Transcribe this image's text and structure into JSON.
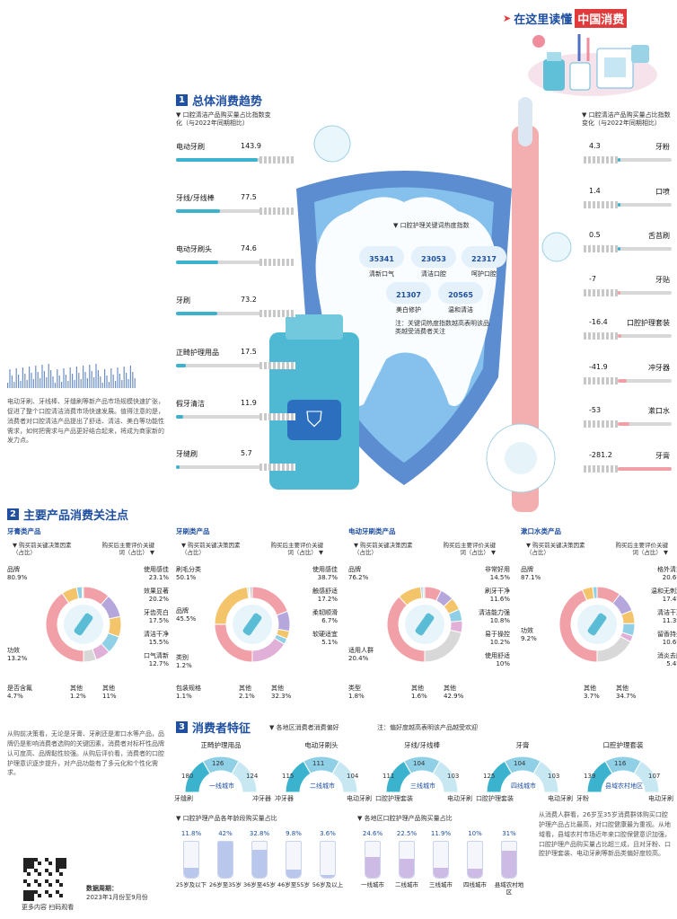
{
  "header": {
    "arrow": "➤",
    "title_a": "在这里读懂",
    "title_b": "中国消费"
  },
  "section1": {
    "num": "1",
    "title": "总体消费趋势",
    "left_note": "口腔清洁产品购买量占比指数变化（与2022年同期相比）",
    "right_note": "口腔清洁产品购买量占比指数变化（与2022年同期相比）"
  },
  "chart_data": [
    {
      "type": "bar",
      "name": "left_index",
      "categories": [
        "电动牙刷",
        "牙线/牙线棒",
        "电动牙刷头",
        "牙刷",
        "正畸护理用品",
        "假牙清洁",
        "牙缝刷"
      ],
      "values": [
        143.9,
        77.5,
        74.6,
        73.2,
        17.5,
        11.9,
        5.7
      ]
    },
    {
      "type": "bar",
      "name": "right_index",
      "categories": [
        "牙粉",
        "口喷",
        "舌苔刷",
        "牙贴",
        "口腔护理套装",
        "冲牙器",
        "漱口水",
        "牙膏"
      ],
      "values": [
        4.3,
        1.4,
        0.5,
        -7.0,
        -16.4,
        -41.9,
        -53.0,
        -281.2
      ]
    },
    {
      "type": "table",
      "name": "keyword_heat",
      "title": "口腔护理关键词热度指数",
      "categories": [
        "清新口气",
        "清洁口腔",
        "呵护口腔",
        "美白修护",
        "温和清洁"
      ],
      "values": [
        35341,
        23053,
        22317,
        21307,
        20565
      ],
      "note": "注：关键词热度指数越高表明该品类越受消费者关注"
    },
    {
      "type": "pie",
      "name": "toothpaste",
      "title": "牙膏类产品",
      "left_slices": [
        {
          "label": "品牌",
          "value": 80.9
        },
        {
          "label": "功效",
          "value": 13.2
        },
        {
          "label": "是否含氟",
          "value": 4.7
        },
        {
          "label": "其他",
          "value": 1.2
        }
      ],
      "right_slices": [
        {
          "label": "使用感佳",
          "value": 23.1
        },
        {
          "label": "效果显著",
          "value": 20.2
        },
        {
          "label": "牙齿亮白",
          "value": 17.5
        },
        {
          "label": "清洁干净",
          "value": 15.5
        },
        {
          "label": "口气清新",
          "value": 12.7
        },
        {
          "label": "其他",
          "value": 11.0
        }
      ]
    },
    {
      "type": "pie",
      "name": "toothbrush",
      "title": "牙刷类产品",
      "left_slices": [
        {
          "label": "刷毛分类",
          "value": 50.1
        },
        {
          "label": "品牌",
          "value": 45.5
        },
        {
          "label": "类别",
          "value": 1.2
        },
        {
          "label": "包装规格",
          "value": 1.1
        },
        {
          "label": "其他",
          "value": 2.1
        }
      ],
      "right_slices": [
        {
          "label": "使用感佳",
          "value": 38.7
        },
        {
          "label": "触感舒适",
          "value": 17.2
        },
        {
          "label": "柔韧顺滑",
          "value": 6.7
        },
        {
          "label": "软硬适宜",
          "value": 5.1
        },
        {
          "label": "其他",
          "value": 32.3
        }
      ]
    },
    {
      "type": "pie",
      "name": "electric_toothbrush",
      "title": "电动牙刷类产品",
      "left_slices": [
        {
          "label": "品牌",
          "value": 76.2
        },
        {
          "label": "适用人群",
          "value": 20.4
        },
        {
          "label": "类型",
          "value": 1.8
        },
        {
          "label": "其他",
          "value": 1.6
        }
      ],
      "right_slices": [
        {
          "label": "非常好用",
          "value": 14.5
        },
        {
          "label": "刷牙干净",
          "value": 11.6
        },
        {
          "label": "清洁能力强",
          "value": 10.8
        },
        {
          "label": "易于操控",
          "value": 10.2
        },
        {
          "label": "使用舒适",
          "value": 10.0
        },
        {
          "label": "其他",
          "value": 42.9
        }
      ]
    },
    {
      "type": "pie",
      "name": "mouthwash",
      "title": "漱口水类产品",
      "left_slices": [
        {
          "label": "品牌",
          "value": 87.1
        },
        {
          "label": "功效",
          "value": 9.2
        },
        {
          "label": "其他",
          "value": 3.7
        }
      ],
      "right_slices": [
        {
          "label": "格外清爽",
          "value": 20.6
        },
        {
          "label": "温和无刺激",
          "value": 17.4
        },
        {
          "label": "清洁干净",
          "value": 11.3
        },
        {
          "label": "留香持久",
          "value": 10.6
        },
        {
          "label": "消炎去肿",
          "value": 5.4
        },
        {
          "label": "其他",
          "value": 34.7
        }
      ]
    },
    {
      "type": "bar",
      "name": "age_share",
      "title": "口腔护理产品各年龄段购买量占比",
      "categories": [
        "25岁及以下",
        "26岁至35岁",
        "36岁至45岁",
        "46岁至55岁",
        "56岁及以上"
      ],
      "values": [
        11.8,
        42.0,
        32.8,
        9.8,
        3.6
      ]
    },
    {
      "type": "bar",
      "name": "region_share",
      "title": "各地区口腔护理产品购买量占比",
      "categories": [
        "一线城市",
        "二线城市",
        "三线城市",
        "四线城市",
        "县域农村地区"
      ],
      "values": [
        24.6,
        22.5,
        11.9,
        10.0,
        31.0
      ]
    }
  ],
  "intro_text": "电动牙刷、牙线棒、牙缝刷等新产品市场规模快速扩张，促进了整个口腔清洁消费市场快速发展。值得注意的是，消费者对口腔清洁产品提出了舒适、清洁、美白等功能性需求，如何把需求与产品更好结合起来，将成为商家新的发力点。",
  "section2": {
    "num": "2",
    "title": "主要产品消费关注点",
    "pre_h": "购买前关键决策因素（占比）",
    "post_h": "购买后主要评价关键词（占比）"
  },
  "section3": {
    "num": "3",
    "title": "消费者特征",
    "legend": "各地区消费者消费偏好",
    "note": "注：偏好度越高表明该产品越受欢迎",
    "gauges": [
      {
        "title": "正畸护理用品",
        "left": "180",
        "top": "126",
        "right": "124",
        "center": "一线城市",
        "l_lab": "牙缝刷",
        "r_lab": "冲牙器"
      },
      {
        "title": "电动牙刷头",
        "left": "115",
        "top": "111",
        "right": "104",
        "center": "二线城市",
        "l_lab": "冲牙器",
        "r_lab": "电动牙刷"
      },
      {
        "title": "牙线/牙线棒",
        "left": "111",
        "top": "104",
        "right": "103",
        "center": "三线城市",
        "l_lab": "口腔护理套装",
        "r_lab": "电动牙刷"
      },
      {
        "title": "牙膏",
        "left": "125",
        "top": "104",
        "right": "103",
        "center": "四线城市",
        "l_lab": "口腔护理套装",
        "r_lab": "电动牙刷"
      },
      {
        "title": "口腔护理套装",
        "left": "139",
        "top": "116",
        "right": "107",
        "center": "县域农村地区",
        "l_lab": "牙粉",
        "r_lab": "电动牙刷"
      }
    ]
  },
  "bottom_left_text": "从购前决策看，无论是牙膏、牙刷还是漱口水等产品，品牌仍是影响消费者选购的关键因素，消费者对标杆性品牌认可度高、品牌黏性较强。从购后评价看，消费者的口腔护理意识逐步提升，对产品功能有了多元化和个性化需求。",
  "bottom_right_text": "从消费人群看，26岁至35岁消费群体购买口腔护理产品占比最高，对口腔健康最为重视。从地域看，县域农村市场近年来口腔保健意识加强，口腔护理产品购买量占比超三成，且对牙粉、口腔护理套装、电动牙刷等新品类偏好度较高。",
  "qr": {
    "caption": "更多内容 扫码观看"
  },
  "period": {
    "label": "数据周期：",
    "value": "2023年1月份至9月份"
  },
  "colors": {
    "blue": "#1e4fa0",
    "cyan": "#3bb3cf",
    "pink": "#f2a0a8",
    "gold": "#f4c46a",
    "violet": "#b5a6dc",
    "sky": "#8fd0e6",
    "grey": "#d8d8d8"
  }
}
